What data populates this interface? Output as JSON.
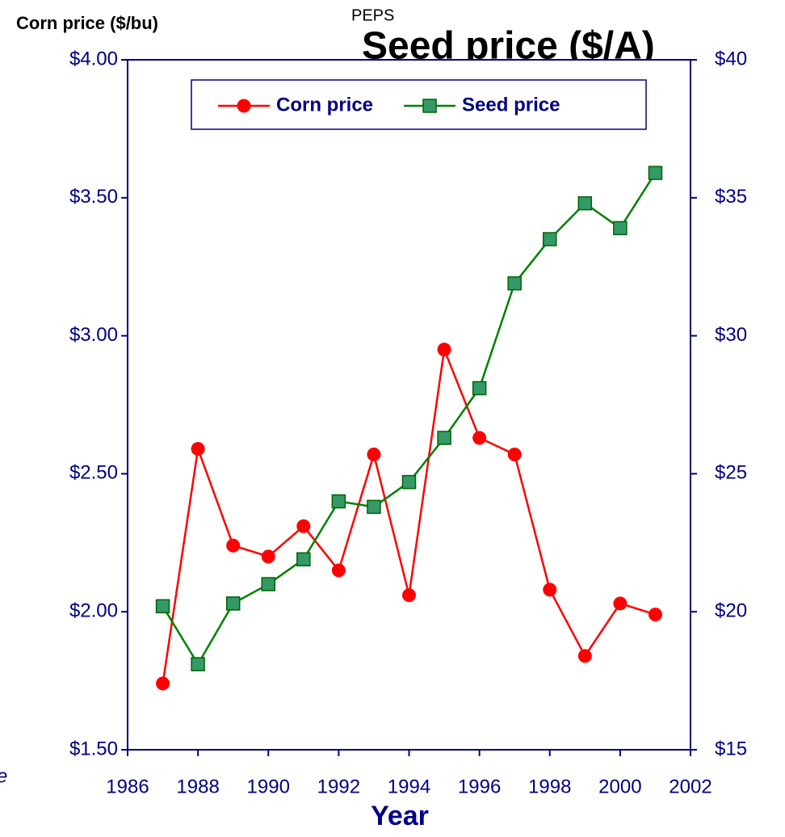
{
  "chart_data": {
    "type": "line",
    "title": "Seed price ($/A)",
    "subtitle": "PEPS",
    "y_label": "Corn price ($/bu)",
    "x_label": "Year",
    "annotation": "e",
    "x": [
      1987,
      1988,
      1989,
      1990,
      1991,
      1992,
      1993,
      1994,
      1995,
      1996,
      1997,
      1998,
      1999,
      2000,
      2001
    ],
    "series": [
      {
        "name": "Corn price",
        "color": "#ff0000",
        "marker": "circle",
        "axis": "y",
        "values": [
          1.74,
          2.59,
          2.24,
          2.2,
          2.31,
          2.15,
          2.57,
          2.06,
          2.95,
          2.63,
          2.57,
          2.08,
          1.84,
          2.03,
          1.99
        ]
      },
      {
        "name": "Seed price",
        "color": "#008000",
        "marker": "square",
        "axis": "y2",
        "values": [
          20.2,
          18.1,
          20.3,
          21.0,
          21.9,
          24.0,
          23.8,
          24.7,
          26.3,
          28.1,
          31.9,
          33.5,
          34.8,
          33.9,
          35.9
        ]
      }
    ],
    "xlim": [
      1986,
      2002
    ],
    "xticks": [
      1986,
      1988,
      1990,
      1992,
      1994,
      1996,
      1998,
      2000,
      2002
    ],
    "ylim": [
      1.5,
      4.0
    ],
    "yticks": [
      {
        "value": 1.5,
        "label": "$1.50"
      },
      {
        "value": 2.0,
        "label": "$2.00"
      },
      {
        "value": 2.5,
        "label": "$2.50"
      },
      {
        "value": 3.0,
        "label": "$3.00"
      },
      {
        "value": 3.5,
        "label": "$3.50"
      },
      {
        "value": 4.0,
        "label": "$4.00"
      }
    ],
    "y2lim": [
      15,
      40
    ],
    "y2ticks": [
      {
        "value": 15,
        "label": "$15"
      },
      {
        "value": 20,
        "label": "$20"
      },
      {
        "value": 25,
        "label": "$25"
      },
      {
        "value": 30,
        "label": "$30"
      },
      {
        "value": 35,
        "label": "$35"
      },
      {
        "value": 40,
        "label": "$40"
      }
    ],
    "grid": true,
    "legend": "top"
  }
}
